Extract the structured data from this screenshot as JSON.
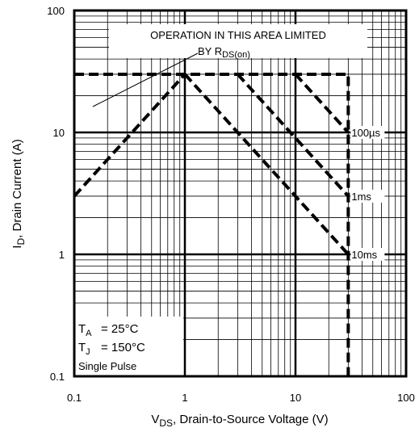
{
  "chart_data": {
    "type": "line",
    "xlabel": ", Drain-to-Source Voltage (V)",
    "xlabel_main": "V",
    "xlabel_sub": "DS",
    "ylabel": ", Drain Current (A)",
    "ylabel_main": "I",
    "ylabel_sub": "D",
    "annotation": [
      "OPERATION IN THIS AREA LIMITED",
      "BY R",
      "DS(on)"
    ],
    "conditions": [
      [
        "T",
        "A",
        "= 25°C"
      ],
      [
        "T",
        "J",
        "= 150°C"
      ],
      "Single Pulse"
    ],
    "xscale": "log",
    "yscale": "log",
    "grid": true,
    "minor_grid": true,
    "xlim": [
      0.1,
      100
    ],
    "ylim": [
      0.1,
      100
    ],
    "xticks": [
      0.1,
      1,
      10,
      100
    ],
    "yticks": [
      0.1,
      1,
      10,
      100
    ],
    "series": [
      {
        "color": "#000000",
        "x": [
          0.1,
          30,
          30
        ],
        "values": [
          30,
          30,
          0.1
        ]
      },
      {
        "color": "#000000",
        "x": [
          0.1,
          1
        ],
        "values": [
          3,
          30
        ]
      },
      {
        "name": "100µs",
        "color": "#000000",
        "x": [
          10,
          30
        ],
        "values": [
          30,
          10
        ]
      },
      {
        "name": "1ms",
        "color": "#000000",
        "x": [
          3,
          30
        ],
        "values": [
          30,
          3
        ]
      },
      {
        "name": "10ms",
        "color": "#000000",
        "x": [
          1,
          30
        ],
        "values": [
          30,
          1
        ]
      }
    ]
  }
}
